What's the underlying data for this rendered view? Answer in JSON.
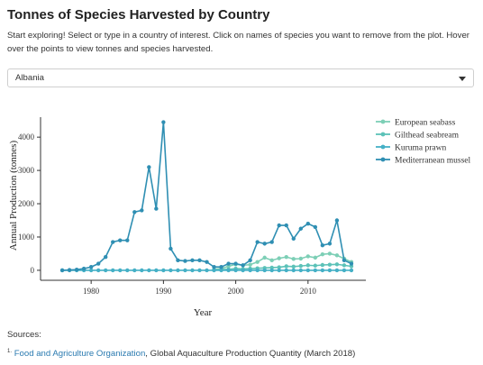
{
  "page": {
    "title": "Tonnes of Species Harvested by Country",
    "intro": "Start exploring! Select or type in a country of interest. Click on names of species you want to remove from the plot. Hover over the points to view tonnes and species harvested.",
    "country_select": {
      "value": "Albania",
      "caret_icon": "chevron-down-icon"
    },
    "sources_label": "Sources:",
    "footnote": {
      "marker": "1.",
      "link_text": "Food and Agriculture Organization",
      "rest": ", Global Aquaculture Production Quantity (March 2018)"
    }
  },
  "chart_data": {
    "type": "line",
    "title": "",
    "xlabel": "Year",
    "ylabel": "Annual Production (tonnes)",
    "xlim": [
      1973,
      2018
    ],
    "ylim": [
      -300,
      4600
    ],
    "xticks": [
      1980,
      1990,
      2000,
      2010
    ],
    "yticks": [
      0,
      1000,
      2000,
      3000,
      4000
    ],
    "grid": false,
    "legend_position": "right",
    "series": [
      {
        "name": "European seabass",
        "color": "#7dcfb6",
        "x": [
          1997,
          1998,
          1999,
          2000,
          2001,
          2002,
          2003,
          2004,
          2005,
          2006,
          2007,
          2008,
          2009,
          2010,
          2011,
          2012,
          2013,
          2014,
          2015,
          2016
        ],
        "y": [
          30,
          50,
          120,
          180,
          150,
          170,
          250,
          380,
          300,
          360,
          400,
          340,
          350,
          420,
          380,
          480,
          500,
          450,
          350,
          250
        ]
      },
      {
        "name": "Gilthead seabream",
        "color": "#5cc2b8",
        "x": [
          1997,
          1998,
          1999,
          2000,
          2001,
          2002,
          2003,
          2004,
          2005,
          2006,
          2007,
          2008,
          2009,
          2010,
          2011,
          2012,
          2013,
          2014,
          2015,
          2016
        ],
        "y": [
          10,
          20,
          30,
          50,
          40,
          50,
          60,
          70,
          80,
          90,
          120,
          110,
          130,
          150,
          140,
          160,
          170,
          180,
          150,
          120
        ]
      },
      {
        "name": "Kuruma prawn",
        "color": "#45b0c6",
        "x": [
          1976,
          1977,
          1978,
          1979,
          1980,
          1981,
          1982,
          1983,
          1984,
          1985,
          1986,
          1987,
          1988,
          1989,
          1990,
          1991,
          1992,
          1993,
          1994,
          1995,
          1996,
          1997,
          1998,
          1999,
          2000,
          2001,
          2002,
          2003,
          2004,
          2005,
          2006,
          2007,
          2008,
          2009,
          2010,
          2011,
          2012,
          2013,
          2014,
          2015,
          2016
        ],
        "y": [
          0,
          0,
          0,
          0,
          0,
          0,
          0,
          0,
          0,
          0,
          0,
          0,
          0,
          0,
          0,
          0,
          0,
          0,
          0,
          0,
          0,
          0,
          0,
          0,
          0,
          0,
          0,
          0,
          0,
          0,
          0,
          0,
          0,
          0,
          0,
          0,
          0,
          0,
          0,
          0,
          0
        ]
      },
      {
        "name": "Mediterranean mussel",
        "color": "#2f8fb3",
        "x": [
          1976,
          1977,
          1978,
          1979,
          1980,
          1981,
          1982,
          1983,
          1984,
          1985,
          1986,
          1987,
          1988,
          1989,
          1990,
          1991,
          1992,
          1993,
          1994,
          1995,
          1996,
          1997,
          1998,
          1999,
          2000,
          2001,
          2002,
          2003,
          2004,
          2005,
          2006,
          2007,
          2008,
          2009,
          2010,
          2011,
          2012,
          2013,
          2014,
          2015,
          2016
        ],
        "y": [
          0,
          10,
          20,
          50,
          100,
          200,
          400,
          850,
          900,
          900,
          1750,
          1800,
          3100,
          1850,
          4450,
          650,
          300,
          280,
          300,
          300,
          250,
          100,
          100,
          200,
          200,
          150,
          300,
          850,
          800,
          850,
          1350,
          1350,
          950,
          1250,
          1400,
          1300,
          750,
          800,
          1500,
          300,
          200
        ]
      }
    ]
  }
}
